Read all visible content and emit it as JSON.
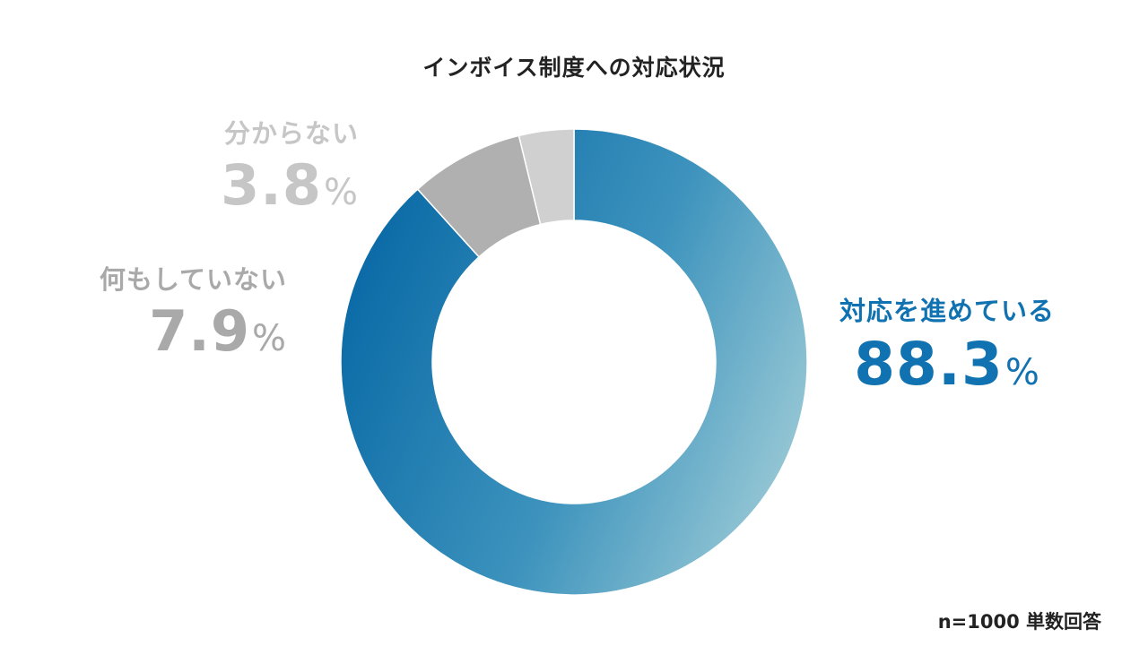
{
  "chart_data": {
    "type": "pie",
    "variant": "donut",
    "title": "インボイス制度への対応状況",
    "categories": [
      "対応を進めている",
      "何もしていない",
      "分からない"
    ],
    "values": [
      88.3,
      7.9,
      3.8
    ],
    "value_labels": [
      "88.3",
      "7.9",
      "3.8"
    ],
    "unit": "%",
    "colors": {
      "対応を進めている": "#1a7fb5",
      "何もしていない": "#b0b0b0",
      "分からない": "#d0d0d0"
    },
    "note": "n=1000 単数回答"
  }
}
